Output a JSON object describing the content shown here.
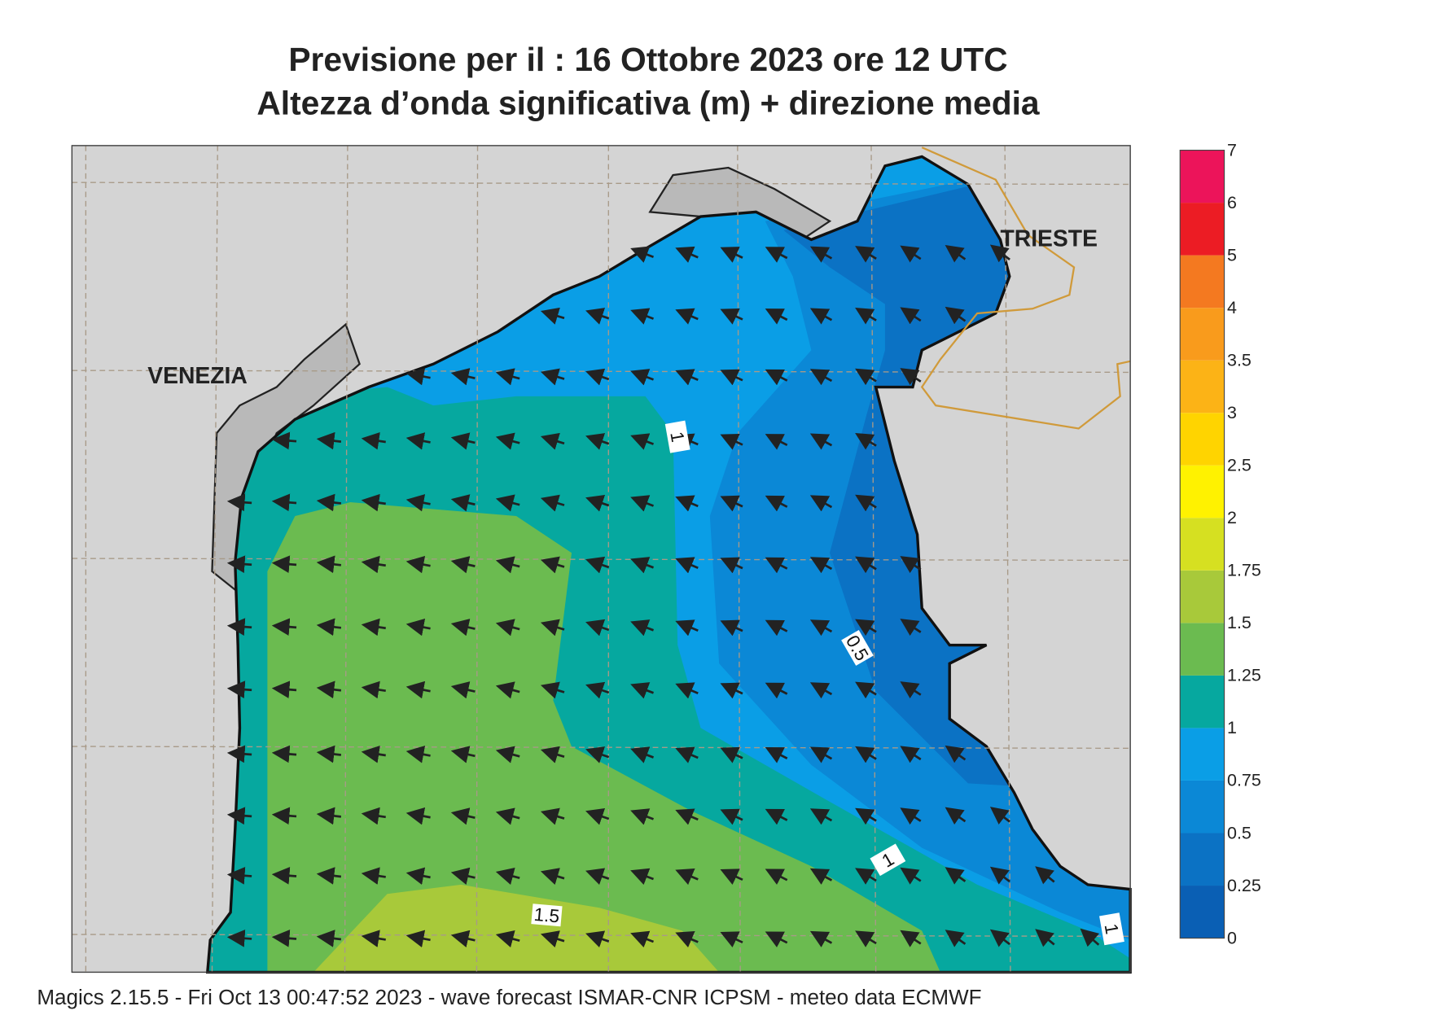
{
  "header": {
    "title": "Previsione per il  :  16  Ottobre  2023   ore 12 UTC",
    "subtitle": "Altezza d’onda significativa (m) + direzione media"
  },
  "map": {
    "places": [
      "VENEZIA",
      "TRIESTE"
    ],
    "contour_labels": [
      "1",
      "0.5",
      "1",
      "1.5",
      "1"
    ]
  },
  "legend": {
    "levels": [
      0,
      0.25,
      0.5,
      0.75,
      1,
      1.25,
      1.5,
      1.75,
      2,
      2.5,
      3,
      3.5,
      4,
      5,
      6,
      7
    ],
    "colors": [
      "#0a5fb4",
      "#0b72c4",
      "#0b88d6",
      "#0a9ee6",
      "#06a89f",
      "#6bbb50",
      "#a8c93a",
      "#d6e021",
      "#fff200",
      "#ffd400",
      "#fcb316",
      "#f99b1c",
      "#f47920",
      "#ec1c24",
      "#ec145a"
    ]
  },
  "footer": "Magics 2.15.5 - Fri Oct 13 00:47:52 2023 - wave forecast  ISMAR-CNR  ICPSM - meteo data   ECMWF"
}
